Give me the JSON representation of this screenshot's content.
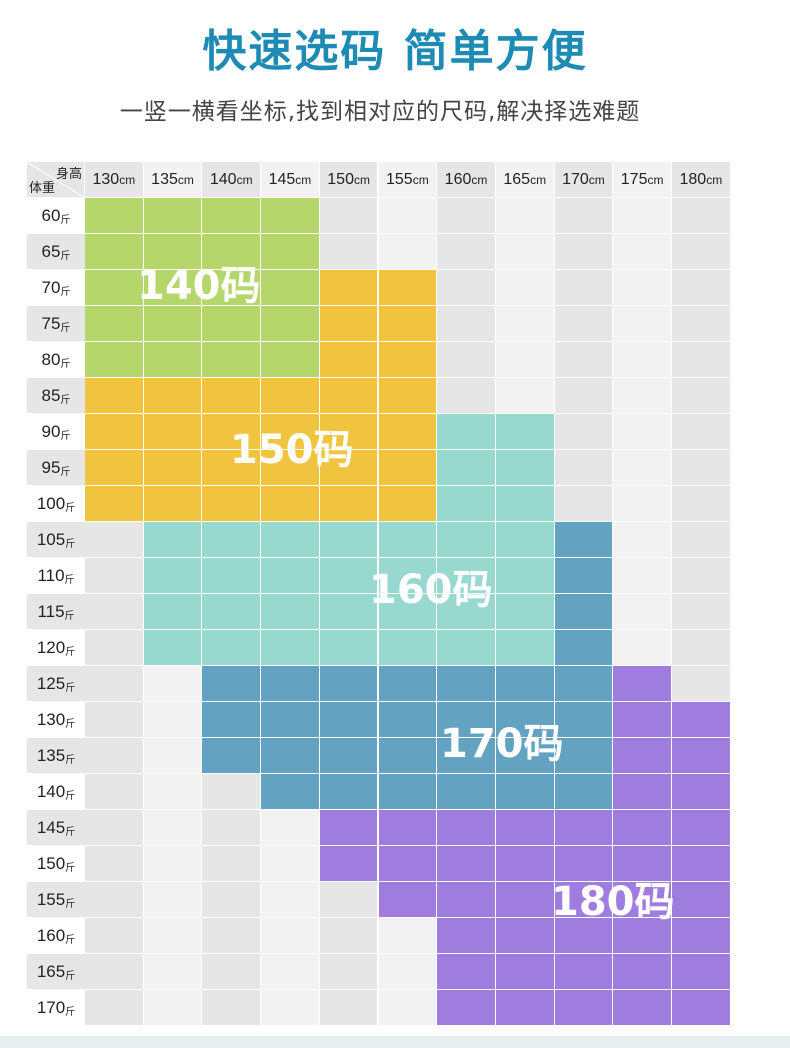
{
  "title": "快速选码 简单方便",
  "subtitle": "一竖一横看坐标,找到相对应的尺码,解决择选难题",
  "table": {
    "corner_top": "身高",
    "corner_bottom": "体重",
    "height_unit": "cm",
    "weight_unit": "斤",
    "heights": [
      "130",
      "135",
      "140",
      "145",
      "150",
      "155",
      "160",
      "165",
      "170",
      "175",
      "180"
    ],
    "weights": [
      "60",
      "65",
      "70",
      "75",
      "80",
      "85",
      "90",
      "95",
      "100",
      "105",
      "110",
      "115",
      "120",
      "125",
      "130",
      "135",
      "140",
      "145",
      "150",
      "155",
      "160",
      "165",
      "170"
    ],
    "size_grid": [
      [
        "140",
        "140",
        "140",
        "140",
        "",
        "",
        "",
        "",
        "",
        "",
        ""
      ],
      [
        "140",
        "140",
        "140",
        "140",
        "",
        "",
        "",
        "",
        "",
        "",
        ""
      ],
      [
        "140",
        "140",
        "140",
        "140",
        "150",
        "150",
        "",
        "",
        "",
        "",
        ""
      ],
      [
        "140",
        "140",
        "140",
        "140",
        "150",
        "150",
        "",
        "",
        "",
        "",
        ""
      ],
      [
        "140",
        "140",
        "140",
        "140",
        "150",
        "150",
        "",
        "",
        "",
        "",
        ""
      ],
      [
        "150",
        "150",
        "150",
        "150",
        "150",
        "150",
        "",
        "",
        "",
        "",
        ""
      ],
      [
        "150",
        "150",
        "150",
        "150",
        "150",
        "150",
        "160",
        "160",
        "",
        "",
        ""
      ],
      [
        "150",
        "150",
        "150",
        "150",
        "150",
        "150",
        "160",
        "160",
        "",
        "",
        ""
      ],
      [
        "150",
        "150",
        "150",
        "150",
        "150",
        "150",
        "160",
        "160",
        "",
        "",
        ""
      ],
      [
        "",
        "160",
        "160",
        "160",
        "160",
        "160",
        "160",
        "160",
        "170",
        "",
        ""
      ],
      [
        "",
        "160",
        "160",
        "160",
        "160",
        "160",
        "160",
        "160",
        "170",
        "",
        ""
      ],
      [
        "",
        "160",
        "160",
        "160",
        "160",
        "160",
        "160",
        "160",
        "170",
        "",
        ""
      ],
      [
        "",
        "160",
        "160",
        "160",
        "160",
        "160",
        "160",
        "160",
        "170",
        "",
        ""
      ],
      [
        "",
        "",
        "170",
        "170",
        "170",
        "170",
        "170",
        "170",
        "170",
        "180",
        ""
      ],
      [
        "",
        "",
        "170",
        "170",
        "170",
        "170",
        "170",
        "170",
        "170",
        "180",
        "180"
      ],
      [
        "",
        "",
        "170",
        "170",
        "170",
        "170",
        "170",
        "170",
        "170",
        "180",
        "180"
      ],
      [
        "",
        "",
        "",
        "170",
        "170",
        "170",
        "170",
        "170",
        "170",
        "180",
        "180"
      ],
      [
        "",
        "",
        "",
        "",
        "180",
        "180",
        "180",
        "180",
        "180",
        "180",
        "180"
      ],
      [
        "",
        "",
        "",
        "",
        "180",
        "180",
        "180",
        "180",
        "180",
        "180",
        "180"
      ],
      [
        "",
        "",
        "",
        "",
        "",
        "180",
        "180",
        "180",
        "180",
        "180",
        "180"
      ],
      [
        "",
        "",
        "",
        "",
        "",
        "",
        "180",
        "180",
        "180",
        "180",
        "180"
      ],
      [
        "",
        "",
        "",
        "",
        "",
        "",
        "180",
        "180",
        "180",
        "180",
        "180"
      ],
      [
        "",
        "",
        "",
        "",
        "",
        "",
        "180",
        "180",
        "180",
        "180",
        "180"
      ]
    ],
    "zones": [
      {
        "size": "140",
        "label": "140码",
        "color": "#b4d66a"
      },
      {
        "size": "150",
        "label": "150码",
        "color": "#f1c43f"
      },
      {
        "size": "160",
        "label": "160码",
        "color": "#97d8cf"
      },
      {
        "size": "170",
        "label": "170码",
        "color": "#64a2c1"
      },
      {
        "size": "180",
        "label": "180码",
        "color": "#9e7ddf"
      }
    ],
    "empty_colors": [
      "#e6e6e6",
      "#f2f2f2"
    ]
  }
}
